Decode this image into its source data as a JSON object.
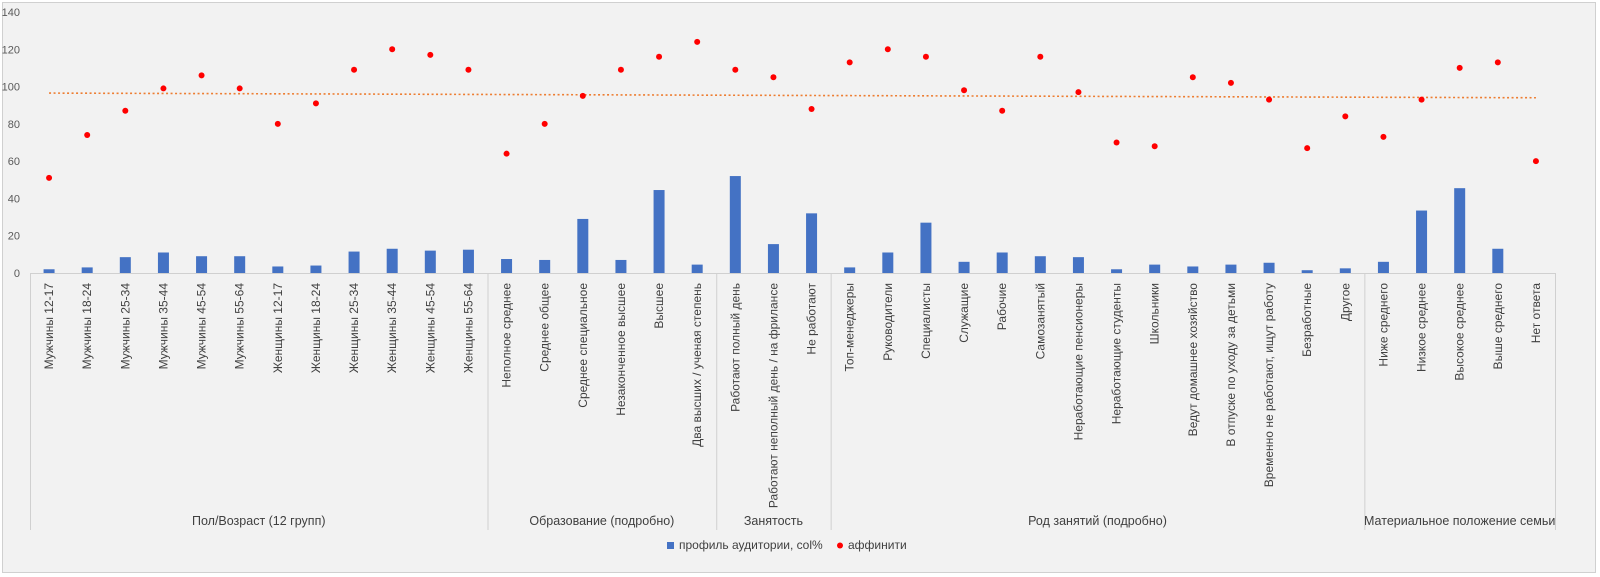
{
  "chart_data": {
    "type": "bar",
    "title": "",
    "xlabel": "",
    "ylabel": "",
    "ylim": [
      0,
      140
    ],
    "yticks": [
      0,
      20,
      40,
      60,
      80,
      100,
      120,
      140
    ],
    "grid": false,
    "legend_position": "bottom",
    "categories": [
      "Мужчины 12-17",
      "Мужчины 18-24",
      "Мужчины 25-34",
      "Мужчины 35-44",
      "Мужчины 45-54",
      "Мужчины 55-64",
      "Женщины 12-17",
      "Женщины 18-24",
      "Женщины 25-34",
      "Женщины 35-44",
      "Женщины 45-54",
      "Женщины 55-64",
      "Неполное среднее",
      "Среднее общее",
      "Среднее специальное",
      "Незаконченное высшее",
      "Высшее",
      "Два высших / ученая степень",
      "Работают полный день",
      "Работают неполный день / на фрилансе",
      "Не работают",
      "Топ-менеджеры",
      "Руководители",
      "Специалисты",
      "Служащие",
      "Рабочие",
      "Самозанятый",
      "Неработающие пенсионеры",
      "Неработающие студенты",
      "Школьники",
      "Ведут домашнее хозяйство",
      "В отпуске по уходу за детьми",
      "Временно не работают, ищут работу",
      "Безработные",
      "Другое",
      "Ниже среднего",
      "Низкое среднее",
      "Высокое среднее",
      "Выше среднего",
      "Нет ответа"
    ],
    "groups": [
      {
        "label": "Пол/Возраст (12 групп)",
        "count": 12
      },
      {
        "label": "Образование (подробно)",
        "count": 6
      },
      {
        "label": "Занятость",
        "count": 3
      },
      {
        "label": "Род занятий (подробно)",
        "count": 14
      },
      {
        "label": "Материальное положение семьи",
        "count": 5
      }
    ],
    "series": [
      {
        "name": "профиль аудитории, col%",
        "type": "bar",
        "color": "#4472c4",
        "values": [
          2,
          3,
          8.5,
          11,
          9,
          9,
          3.5,
          4,
          11.5,
          13,
          12,
          12.5,
          7.5,
          7,
          29,
          7,
          44.5,
          4.5,
          52,
          15.5,
          32,
          3,
          11,
          27,
          6,
          11,
          9,
          8.5,
          2,
          4.5,
          3.5,
          4.5,
          5.5,
          1.5,
          2.5,
          6,
          33.5,
          45.5,
          13,
          0
        ]
      },
      {
        "name": "аффинити",
        "type": "scatter",
        "color": "#ff0000",
        "values": [
          51,
          74,
          87,
          99,
          106,
          99,
          80,
          91,
          109,
          120,
          117,
          109,
          64,
          80,
          95,
          109,
          116,
          124,
          109,
          105,
          88,
          113,
          120,
          116,
          98,
          87,
          116,
          97,
          70,
          68,
          105,
          102,
          93,
          67,
          84,
          73,
          93,
          110,
          113,
          60
        ]
      }
    ],
    "trendline": {
      "series": "аффинити",
      "type": "linear",
      "color": "#ed7d31",
      "start": 96.5,
      "end": 94
    }
  }
}
